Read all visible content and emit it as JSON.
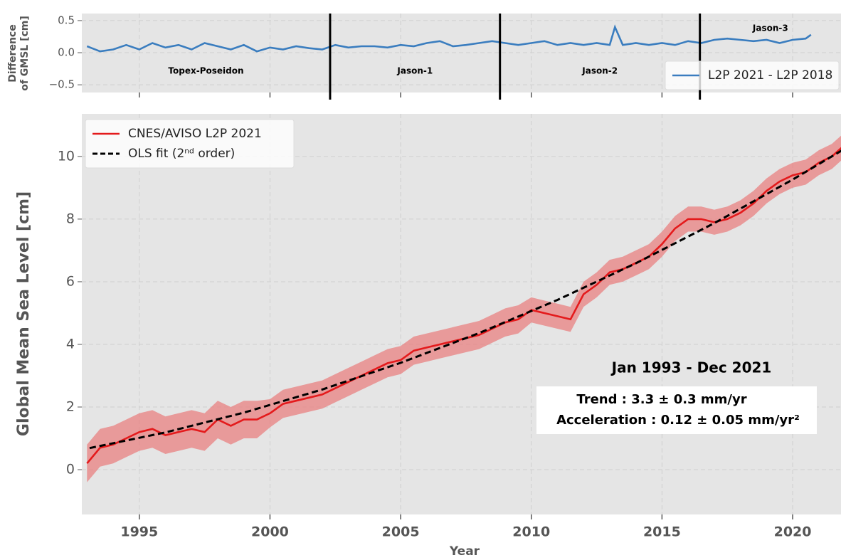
{
  "chart_data": [
    {
      "type": "line",
      "ylabel": [
        "Difference",
        "of GMSL [cm]"
      ],
      "x": [
        1993.0,
        1993.5,
        1994.0,
        1994.5,
        1995.0,
        1995.5,
        1996.0,
        1996.5,
        1997.0,
        1997.5,
        1998.0,
        1998.5,
        1999.0,
        1999.5,
        2000.0,
        2000.5,
        2001.0,
        2001.5,
        2002.0,
        2002.5,
        2003.0,
        2003.5,
        2004.0,
        2004.5,
        2005.0,
        2005.5,
        2006.0,
        2006.5,
        2007.0,
        2007.5,
        2008.0,
        2008.5,
        2009.0,
        2009.5,
        2010.0,
        2010.5,
        2011.0,
        2011.5,
        2012.0,
        2012.5,
        2013.0,
        2013.2,
        2013.5,
        2014.0,
        2014.5,
        2015.0,
        2015.5,
        2016.0,
        2016.5,
        2017.0,
        2017.5,
        2018.0,
        2018.5,
        2019.0,
        2019.5,
        2020.0,
        2020.5,
        2020.7
      ],
      "series": [
        {
          "name": "L2P 2021 - L2P 2018",
          "color": "#3a7dbf",
          "values": [
            0.1,
            0.02,
            0.05,
            0.12,
            0.05,
            0.15,
            0.08,
            0.12,
            0.05,
            0.15,
            0.1,
            0.05,
            0.12,
            0.02,
            0.08,
            0.05,
            0.1,
            0.07,
            0.05,
            0.12,
            0.08,
            0.1,
            0.1,
            0.08,
            0.12,
            0.1,
            0.15,
            0.18,
            0.1,
            0.12,
            0.15,
            0.18,
            0.15,
            0.12,
            0.15,
            0.18,
            0.12,
            0.15,
            0.12,
            0.15,
            0.12,
            0.4,
            0.12,
            0.15,
            0.12,
            0.15,
            0.12,
            0.18,
            0.15,
            0.2,
            0.22,
            0.2,
            0.18,
            0.2,
            0.15,
            0.2,
            0.22,
            0.28
          ]
        }
      ],
      "xlim": [
        1992.8,
        2021.85
      ],
      "ylim": [
        -0.62,
        0.61
      ],
      "xticks": [
        1995,
        2000,
        2005,
        2010,
        2015,
        2020
      ],
      "yticks": [
        {
          "value": 0.5,
          "label": "0.5"
        },
        {
          "value": 0.0,
          "label": "0.0"
        },
        {
          "value": -0.5,
          "label": "−0.5"
        }
      ],
      "mission_boundaries": [
        2002.3,
        2008.8,
        2016.45
      ],
      "missions": [
        "Topex-Poseidon",
        "Jason-1",
        "Jason-2",
        "Jason-3"
      ],
      "legend": "lower right",
      "grid": true
    },
    {
      "type": "line",
      "ylabel": "Global Mean Sea Level  [cm]",
      "xlabel": "Year",
      "series": [
        {
          "name": "CNES/AVISO L2P 2021",
          "color": "#e41a1c",
          "band_color": "#e88080",
          "x": [
            1993.0,
            1993.5,
            1994.0,
            1994.5,
            1995.0,
            1995.5,
            1996.0,
            1996.5,
            1997.0,
            1997.5,
            1998.0,
            1998.5,
            1999.0,
            1999.5,
            2000.0,
            2000.5,
            2001.0,
            2001.5,
            2002.0,
            2002.5,
            2003.0,
            2003.5,
            2004.0,
            2004.5,
            2005.0,
            2005.5,
            2006.0,
            2006.5,
            2007.0,
            2007.5,
            2008.0,
            2008.5,
            2009.0,
            2009.5,
            2010.0,
            2010.5,
            2011.0,
            2011.5,
            2012.0,
            2012.5,
            2013.0,
            2013.5,
            2014.0,
            2014.5,
            2015.0,
            2015.5,
            2016.0,
            2016.5,
            2017.0,
            2017.5,
            2018.0,
            2018.5,
            2019.0,
            2019.5,
            2020.0,
            2020.5,
            2021.0,
            2021.5,
            2021.9
          ],
          "values": [
            0.2,
            0.7,
            0.8,
            1.0,
            1.2,
            1.3,
            1.1,
            1.2,
            1.3,
            1.2,
            1.6,
            1.4,
            1.6,
            1.6,
            1.8,
            2.1,
            2.2,
            2.3,
            2.4,
            2.6,
            2.8,
            3.0,
            3.2,
            3.4,
            3.5,
            3.8,
            3.9,
            4.0,
            4.1,
            4.2,
            4.3,
            4.5,
            4.7,
            4.8,
            5.1,
            5.0,
            4.9,
            4.8,
            5.6,
            5.9,
            6.3,
            6.4,
            6.6,
            6.8,
            7.2,
            7.7,
            8.0,
            8.0,
            7.9,
            8.0,
            8.2,
            8.5,
            8.9,
            9.2,
            9.4,
            9.5,
            9.8,
            10.0,
            10.3
          ],
          "errors": [
            0.6,
            0.6,
            0.6,
            0.6,
            0.6,
            0.6,
            0.6,
            0.6,
            0.6,
            0.6,
            0.6,
            0.6,
            0.6,
            0.6,
            0.45,
            0.45,
            0.45,
            0.45,
            0.45,
            0.45,
            0.45,
            0.45,
            0.45,
            0.45,
            0.45,
            0.45,
            0.45,
            0.45,
            0.45,
            0.45,
            0.45,
            0.45,
            0.45,
            0.45,
            0.4,
            0.4,
            0.4,
            0.4,
            0.4,
            0.4,
            0.4,
            0.4,
            0.4,
            0.4,
            0.4,
            0.4,
            0.4,
            0.4,
            0.4,
            0.4,
            0.4,
            0.4,
            0.4,
            0.4,
            0.4,
            0.4,
            0.4,
            0.4,
            0.4
          ]
        },
        {
          "name": "OLS fit (2ⁿᵈ order)",
          "color": "#000000",
          "dashed": true,
          "x": [
            1993.1,
            1996,
            1999,
            2002,
            2005,
            2008,
            2011,
            2014,
            2017,
            2020,
            2021.9
          ],
          "values": [
            0.69,
            1.19,
            1.82,
            2.56,
            3.41,
            4.36,
            5.42,
            6.59,
            7.87,
            9.26,
            10.2
          ]
        }
      ],
      "xlim": [
        1992.8,
        2021.85
      ],
      "ylim": [
        -1.43,
        11.36
      ],
      "xticks": [
        1995,
        2000,
        2005,
        2010,
        2015,
        2020
      ],
      "yticks": [
        0,
        2,
        4,
        6,
        8,
        10
      ],
      "legend": "upper left",
      "grid": true,
      "annotations": {
        "period": "Jan 1993 - Dec 2021",
        "trend": "Trend : 3.3 ± 0.3 mm/yr",
        "acceleration": "Acceleration : 0.12 ± 0.05 mm/yr²"
      }
    }
  ]
}
